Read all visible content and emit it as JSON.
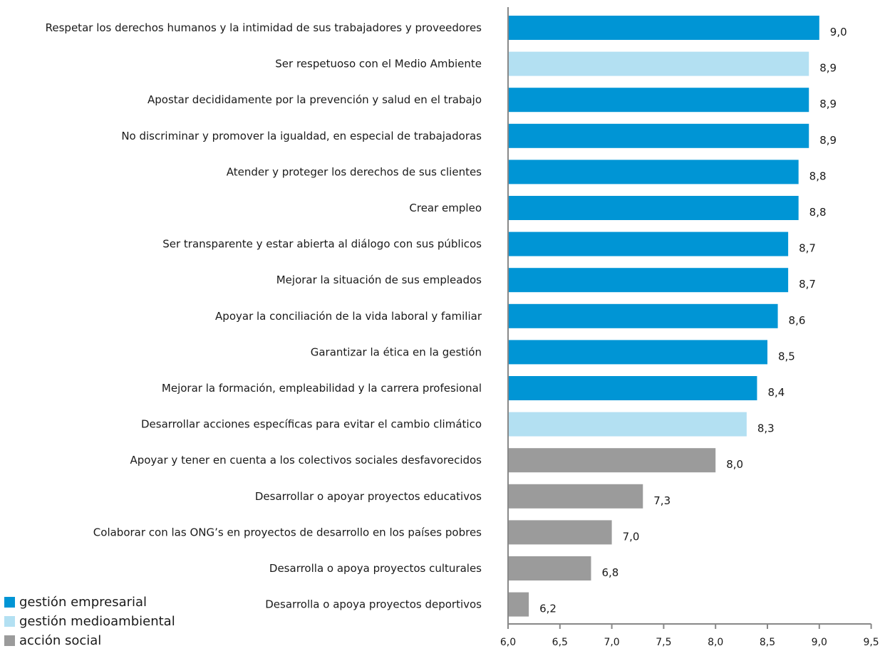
{
  "colors": {
    "gestion_empresarial": "#0095d5",
    "gestion_medioambiental": "#b3e0f2",
    "accion_social": "#9b9b9b",
    "axis": "#888888"
  },
  "legend": [
    {
      "label": "gestión empresarial",
      "color": "#0095d5"
    },
    {
      "label": "gestión medioambiental",
      "color": "#b3e0f2"
    },
    {
      "label": "acción social",
      "color": "#9b9b9b"
    }
  ],
  "chart_data": {
    "type": "bar",
    "orientation": "horizontal",
    "xlim": [
      6.0,
      9.5
    ],
    "xticks": [
      6.0,
      6.5,
      7.0,
      7.5,
      8.0,
      8.5,
      9.0,
      9.5
    ],
    "xtick_labels": [
      "6,0",
      "6,5",
      "7,0",
      "7,5",
      "8,0",
      "8,5",
      "9,0",
      "9,5"
    ],
    "legend_position": "bottom-left",
    "bars": [
      {
        "category": "Respetar los derechos humanos y la intimidad de sus trabajadores y proveedores",
        "value": 9.0,
        "label": "9,0",
        "group": "gestión empresarial",
        "color": "#0095d5"
      },
      {
        "category": "Ser respetuoso con el Medio Ambiente",
        "value": 8.9,
        "label": "8,9",
        "group": "gestión medioambiental",
        "color": "#b3e0f2"
      },
      {
        "category": "Apostar decididamente por la prevención y salud en el trabajo",
        "value": 8.9,
        "label": "8,9",
        "group": "gestión empresarial",
        "color": "#0095d5"
      },
      {
        "category": "No discriminar y promover la igualdad, en especial de trabajadoras",
        "value": 8.9,
        "label": "8,9",
        "group": "gestión empresarial",
        "color": "#0095d5"
      },
      {
        "category": "Atender y proteger los derechos de sus clientes",
        "value": 8.8,
        "label": "8,8",
        "group": "gestión empresarial",
        "color": "#0095d5"
      },
      {
        "category": "Crear empleo",
        "value": 8.8,
        "label": "8,8",
        "group": "gestión empresarial",
        "color": "#0095d5"
      },
      {
        "category": "Ser transparente y estar abierta al diálogo con sus públicos",
        "value": 8.7,
        "label": "8,7",
        "group": "gestión empresarial",
        "color": "#0095d5"
      },
      {
        "category": "Mejorar la situación de sus empleados",
        "value": 8.7,
        "label": "8,7",
        "group": "gestión empresarial",
        "color": "#0095d5"
      },
      {
        "category": "Apoyar la conciliación de la vida laboral y familiar",
        "value": 8.6,
        "label": "8,6",
        "group": "gestión empresarial",
        "color": "#0095d5"
      },
      {
        "category": "Garantizar la ética en la gestión",
        "value": 8.5,
        "label": "8,5",
        "group": "gestión empresarial",
        "color": "#0095d5"
      },
      {
        "category": "Mejorar la formación, empleabilidad y la carrera profesional",
        "value": 8.4,
        "label": "8,4",
        "group": "gestión empresarial",
        "color": "#0095d5"
      },
      {
        "category": "Desarrollar acciones específicas para evitar el cambio climático",
        "value": 8.3,
        "label": "8,3",
        "group": "gestión medioambiental",
        "color": "#b3e0f2"
      },
      {
        "category": "Apoyar y tener en cuenta a los colectivos sociales desfavorecidos",
        "value": 8.0,
        "label": "8,0",
        "group": "acción social",
        "color": "#9b9b9b"
      },
      {
        "category": "Desarrollar o apoyar proyectos educativos",
        "value": 7.3,
        "label": "7,3",
        "group": "acción social",
        "color": "#9b9b9b"
      },
      {
        "category": "Colaborar con las ONG’s en proyectos de desarrollo en los países pobres",
        "value": 7.0,
        "label": "7,0",
        "group": "acción social",
        "color": "#9b9b9b"
      },
      {
        "category": "Desarrolla o apoya proyectos culturales",
        "value": 6.8,
        "label": "6,8",
        "group": "acción social",
        "color": "#9b9b9b"
      },
      {
        "category": "Desarrolla o apoya proyectos deportivos",
        "value": 6.2,
        "label": "6,2",
        "group": "acción social",
        "color": "#9b9b9b"
      }
    ]
  }
}
